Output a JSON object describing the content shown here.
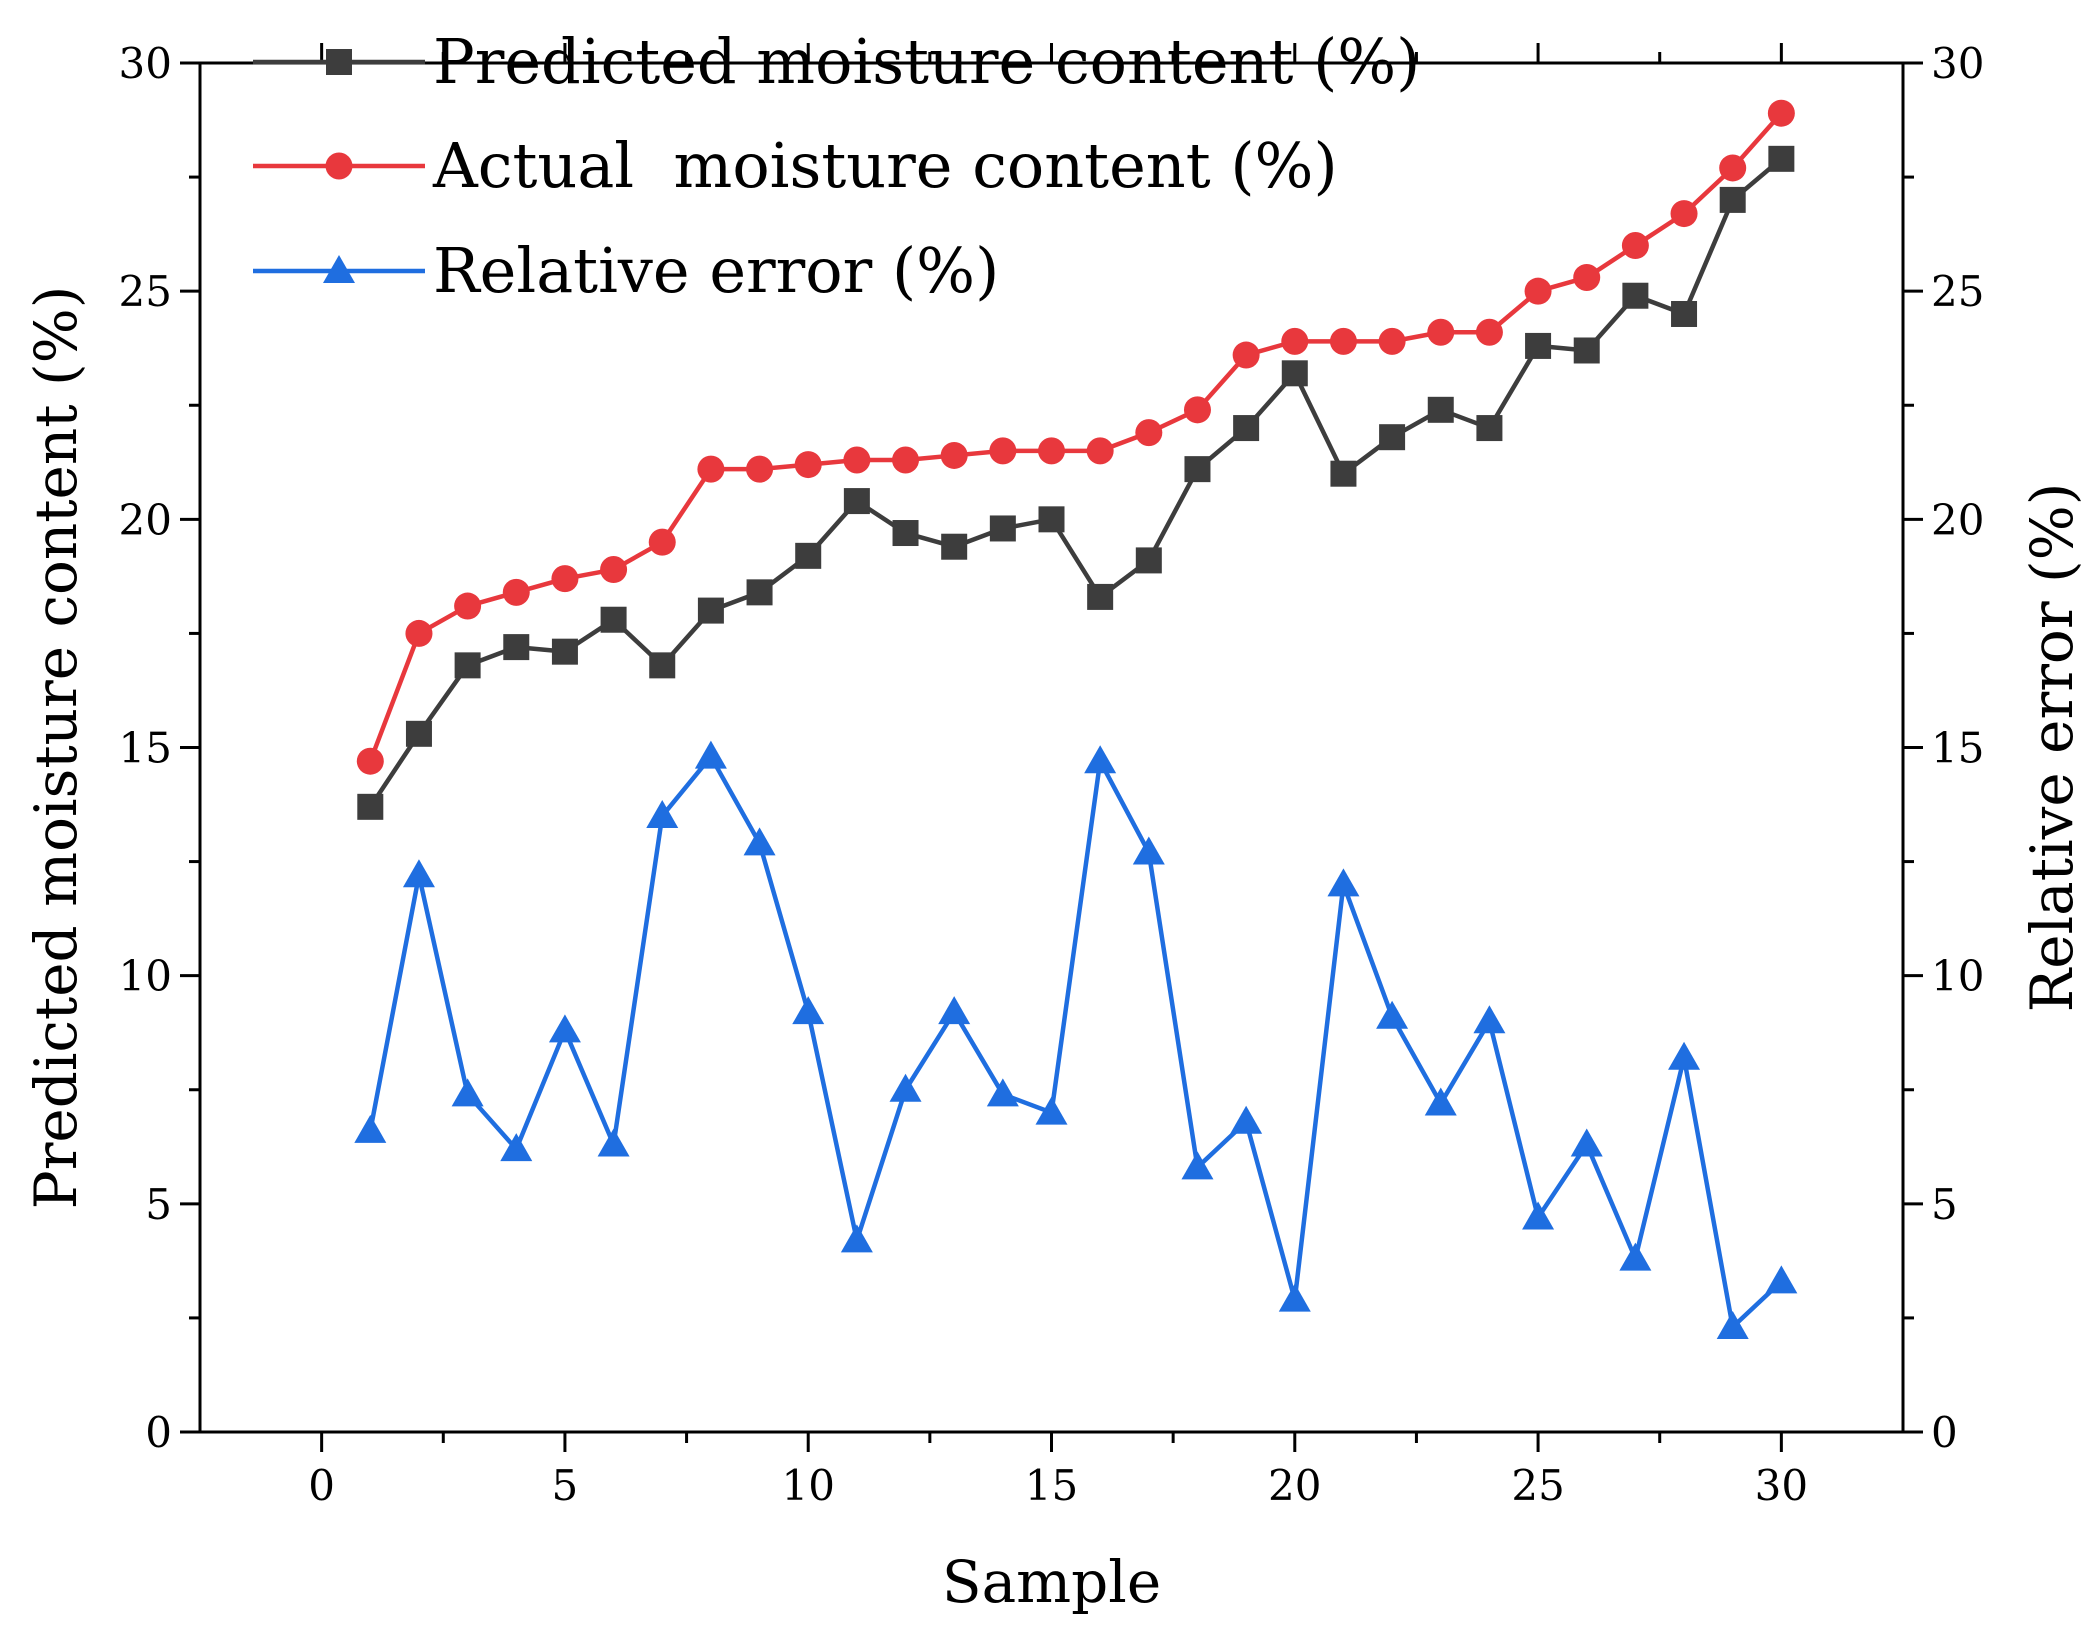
{
  "chart_data": {
    "type": "line",
    "xlabel": "Sample",
    "ylabel": "Predicted moisture content (%)",
    "y2label": "Relative error (%)",
    "xlim": [
      -2.5,
      32.5
    ],
    "ylim": [
      0,
      30
    ],
    "y2lim": [
      0,
      30
    ],
    "xticks": [
      0,
      5,
      10,
      15,
      20,
      25,
      30
    ],
    "yticks": [
      0,
      5,
      10,
      15,
      20,
      25,
      30
    ],
    "y2ticks": [
      0,
      5,
      10,
      15,
      20,
      25,
      30
    ],
    "x": [
      1,
      2,
      3,
      4,
      5,
      6,
      7,
      8,
      9,
      10,
      11,
      12,
      13,
      14,
      15,
      16,
      17,
      18,
      19,
      20,
      21,
      22,
      23,
      24,
      25,
      26,
      27,
      28,
      29,
      30
    ],
    "legend_position": "top-left",
    "series": [
      {
        "name": "Predicted moisture content (%)",
        "axis": "left",
        "color": "#3d3d3d",
        "marker": "square",
        "values": [
          13.7,
          15.3,
          16.8,
          17.2,
          17.1,
          17.8,
          16.8,
          18.0,
          18.4,
          19.2,
          20.4,
          19.7,
          19.4,
          19.8,
          20.0,
          18.3,
          19.1,
          21.1,
          22.0,
          23.2,
          21.0,
          21.8,
          22.4,
          22.0,
          23.8,
          23.7,
          24.9,
          24.5,
          27.0,
          27.9
        ]
      },
      {
        "name": "Actual  moisture content (%)",
        "axis": "left",
        "color": "#e8383d",
        "marker": "circle",
        "values": [
          14.7,
          17.5,
          18.1,
          18.4,
          18.7,
          18.9,
          19.5,
          21.1,
          21.1,
          21.2,
          21.3,
          21.3,
          21.4,
          21.5,
          21.5,
          21.5,
          21.9,
          22.4,
          23.6,
          23.9,
          23.9,
          23.9,
          24.1,
          24.1,
          25.0,
          25.3,
          26.0,
          26.7,
          27.7,
          28.9
        ]
      },
      {
        "name": "Relative error (%)",
        "axis": "right",
        "color": "#1f6ee0",
        "marker": "triangle",
        "values": [
          6.6,
          12.2,
          7.4,
          6.2,
          8.8,
          6.3,
          13.5,
          14.8,
          12.9,
          9.2,
          4.2,
          7.5,
          9.2,
          7.4,
          7.0,
          14.7,
          12.7,
          5.8,
          6.8,
          2.9,
          12.0,
          9.1,
          7.2,
          9.0,
          4.7,
          6.3,
          3.8,
          8.2,
          2.3,
          3.3
        ]
      }
    ]
  }
}
